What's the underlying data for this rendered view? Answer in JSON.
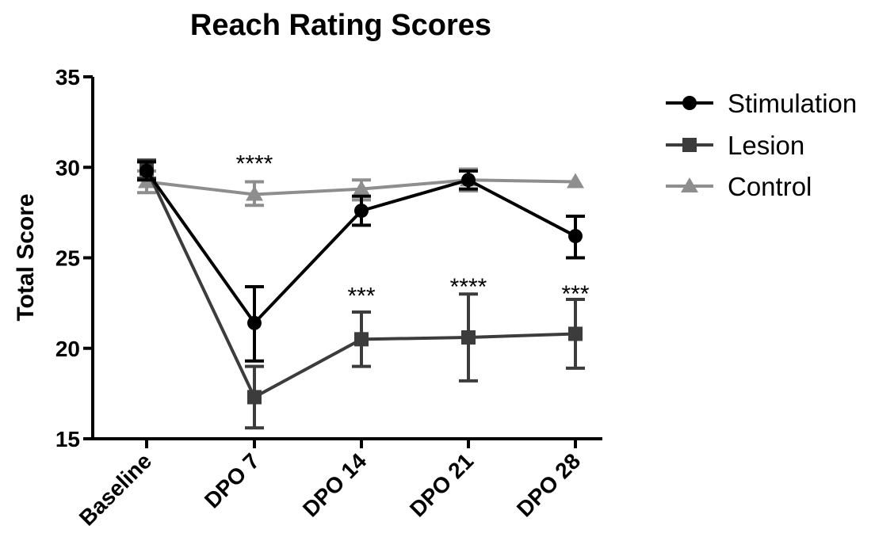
{
  "chart_data": {
    "type": "line",
    "title": "Reach Rating Scores",
    "ylabel": "Total Score",
    "xlabel": "",
    "categories": [
      "Baseline",
      "DPO 7",
      "DPO 14",
      "DPO 21",
      "DPO 28"
    ],
    "ylim": [
      15,
      35
    ],
    "yticks": [
      15,
      20,
      25,
      30,
      35
    ],
    "grid": false,
    "legend_position": "right",
    "series": [
      {
        "name": "Stimulation",
        "color": "#000000",
        "marker": "circle",
        "values": [
          29.8,
          21.4,
          27.6,
          29.3,
          26.2
        ],
        "err_low": [
          29.3,
          19.3,
          26.8,
          28.8,
          25.0
        ],
        "err_high": [
          30.3,
          23.4,
          28.4,
          29.8,
          27.3
        ]
      },
      {
        "name": "Lesion",
        "color": "#3c3c3c",
        "marker": "square",
        "values": [
          29.9,
          17.3,
          20.5,
          20.6,
          20.8
        ],
        "err_low": [
          29.4,
          15.6,
          19.0,
          18.2,
          18.9
        ],
        "err_high": [
          30.4,
          19.0,
          22.0,
          23.0,
          22.7
        ]
      },
      {
        "name": "Control",
        "color": "#8e8e8e",
        "marker": "triangle",
        "values": [
          29.2,
          28.5,
          28.8,
          29.3,
          29.2
        ],
        "err_low": [
          28.6,
          27.9,
          28.2,
          28.7,
          29.2
        ],
        "err_high": [
          29.8,
          29.2,
          29.3,
          29.9,
          29.2
        ]
      }
    ],
    "annotations": [
      {
        "category": "DPO 7",
        "y": 30.2,
        "text": "****"
      },
      {
        "category": "DPO 14",
        "y": 22.9,
        "text": "***"
      },
      {
        "category": "DPO 21",
        "y": 23.4,
        "text": "****"
      },
      {
        "category": "DPO 28",
        "y": 23.0,
        "text": "***"
      }
    ]
  }
}
